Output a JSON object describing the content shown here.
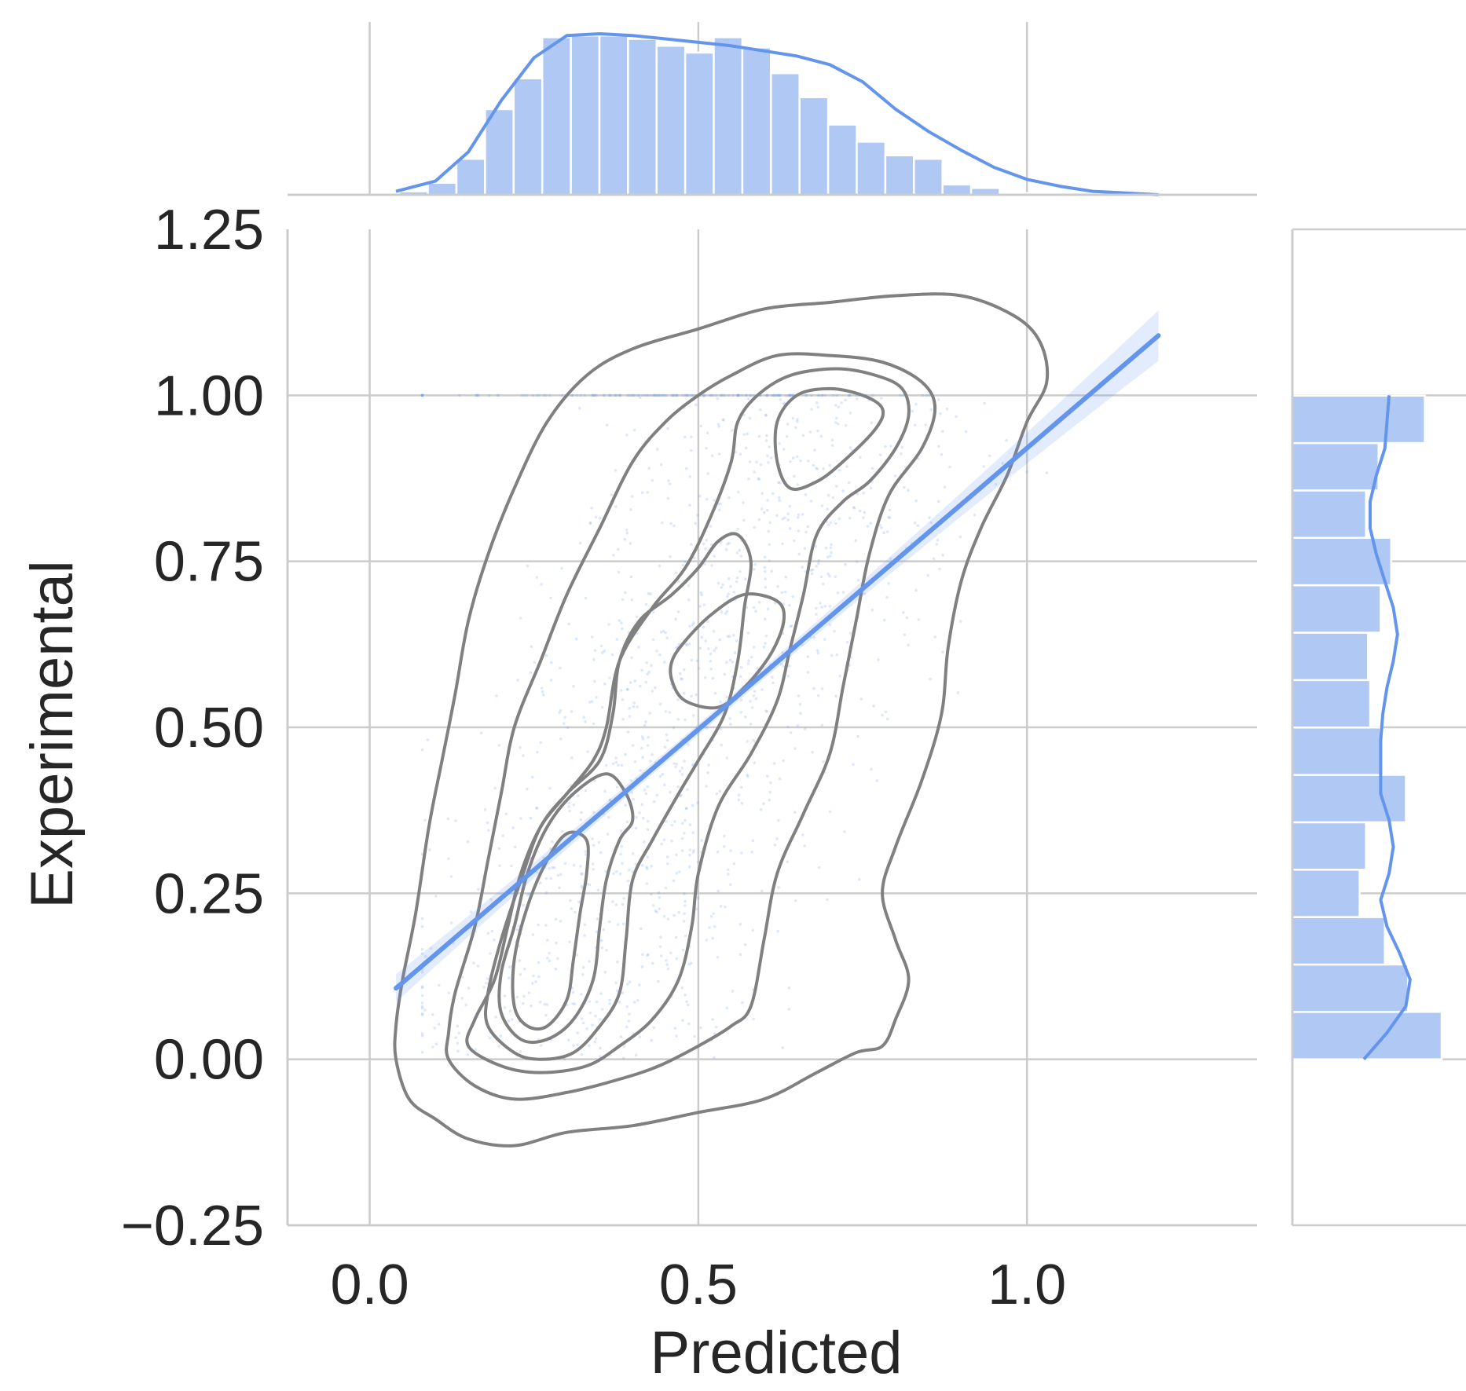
{
  "chart_data": {
    "type": "scatter",
    "xlabel": "Predicted",
    "ylabel": "Experimental",
    "xlim": [
      -0.125,
      1.35
    ],
    "ylim": [
      -0.25,
      1.25
    ],
    "xticks": [
      {
        "value": 0.0,
        "label": "0.0"
      },
      {
        "value": 0.5,
        "label": "0.5"
      },
      {
        "value": 1.0,
        "label": "1.0"
      }
    ],
    "yticks": [
      {
        "value": -0.25,
        "label": "−0.25"
      },
      {
        "value": 0.0,
        "label": "0.00"
      },
      {
        "value": 0.25,
        "label": "0.25"
      },
      {
        "value": 0.5,
        "label": "0.50"
      },
      {
        "value": 0.75,
        "label": "0.75"
      },
      {
        "value": 1.0,
        "label": "1.00"
      },
      {
        "value": 1.25,
        "label": "1.25"
      }
    ],
    "grid": true,
    "colors": {
      "series": "#6495ED",
      "hist_fill": "#B0C8F4",
      "contour": "#808080",
      "grid": "#CCCCCC",
      "text": "#262626"
    },
    "regression_line": {
      "x": [
        0.04,
        1.2
      ],
      "y": [
        0.107,
        1.09
      ]
    },
    "kde_contours": [
      [
        [
          0.04,
          0.0
        ],
        [
          0.06,
          -0.06
        ],
        [
          0.1,
          -0.09
        ],
        [
          0.15,
          -0.12
        ],
        [
          0.22,
          -0.13
        ],
        [
          0.3,
          -0.11
        ],
        [
          0.4,
          -0.1
        ],
        [
          0.5,
          -0.08
        ],
        [
          0.6,
          -0.06
        ],
        [
          0.68,
          -0.02
        ],
        [
          0.74,
          0.01
        ],
        [
          0.78,
          0.02
        ],
        [
          0.8,
          0.06
        ],
        [
          0.82,
          0.12
        ],
        [
          0.8,
          0.18
        ],
        [
          0.78,
          0.25
        ],
        [
          0.8,
          0.32
        ],
        [
          0.84,
          0.42
        ],
        [
          0.87,
          0.52
        ],
        [
          0.88,
          0.62
        ],
        [
          0.9,
          0.72
        ],
        [
          0.93,
          0.8
        ],
        [
          0.97,
          0.88
        ],
        [
          1.0,
          0.96
        ],
        [
          1.03,
          1.02
        ],
        [
          1.02,
          1.08
        ],
        [
          0.98,
          1.12
        ],
        [
          0.9,
          1.15
        ],
        [
          0.8,
          1.15
        ],
        [
          0.7,
          1.14
        ],
        [
          0.6,
          1.13
        ],
        [
          0.5,
          1.1
        ],
        [
          0.4,
          1.07
        ],
        [
          0.33,
          1.03
        ],
        [
          0.27,
          0.96
        ],
        [
          0.22,
          0.86
        ],
        [
          0.18,
          0.76
        ],
        [
          0.15,
          0.66
        ],
        [
          0.13,
          0.55
        ],
        [
          0.11,
          0.45
        ],
        [
          0.09,
          0.35
        ],
        [
          0.07,
          0.22
        ],
        [
          0.05,
          0.12
        ],
        [
          0.04,
          0.05
        ],
        [
          0.04,
          0.0
        ]
      ],
      [
        [
          0.12,
          0.0
        ],
        [
          0.16,
          -0.04
        ],
        [
          0.22,
          -0.06
        ],
        [
          0.3,
          -0.05
        ],
        [
          0.38,
          -0.03
        ],
        [
          0.44,
          -0.01
        ],
        [
          0.5,
          0.02
        ],
        [
          0.55,
          0.05
        ],
        [
          0.58,
          0.08
        ],
        [
          0.6,
          0.18
        ],
        [
          0.62,
          0.28
        ],
        [
          0.66,
          0.37
        ],
        [
          0.7,
          0.46
        ],
        [
          0.72,
          0.56
        ],
        [
          0.74,
          0.66
        ],
        [
          0.76,
          0.76
        ],
        [
          0.79,
          0.85
        ],
        [
          0.84,
          0.92
        ],
        [
          0.86,
          0.98
        ],
        [
          0.84,
          1.02
        ],
        [
          0.78,
          1.05
        ],
        [
          0.7,
          1.06
        ],
        [
          0.62,
          1.06
        ],
        [
          0.55,
          1.03
        ],
        [
          0.5,
          1.0
        ],
        [
          0.45,
          0.96
        ],
        [
          0.4,
          0.9
        ],
        [
          0.35,
          0.8
        ],
        [
          0.3,
          0.7
        ],
        [
          0.26,
          0.6
        ],
        [
          0.22,
          0.5
        ],
        [
          0.2,
          0.4
        ],
        [
          0.18,
          0.3
        ],
        [
          0.16,
          0.2
        ],
        [
          0.13,
          0.1
        ],
        [
          0.12,
          0.04
        ],
        [
          0.12,
          0.0
        ]
      ],
      [
        [
          0.15,
          0.02
        ],
        [
          0.2,
          -0.01
        ],
        [
          0.26,
          -0.02
        ],
        [
          0.33,
          -0.01
        ],
        [
          0.38,
          0.02
        ],
        [
          0.43,
          0.06
        ],
        [
          0.47,
          0.12
        ],
        [
          0.49,
          0.2
        ],
        [
          0.5,
          0.28
        ],
        [
          0.53,
          0.38
        ],
        [
          0.58,
          0.46
        ],
        [
          0.62,
          0.54
        ],
        [
          0.64,
          0.62
        ],
        [
          0.66,
          0.7
        ],
        [
          0.68,
          0.79
        ],
        [
          0.72,
          0.84
        ],
        [
          0.76,
          0.87
        ],
        [
          0.8,
          0.92
        ],
        [
          0.82,
          0.97
        ],
        [
          0.81,
          1.01
        ],
        [
          0.77,
          1.03
        ],
        [
          0.71,
          1.04
        ],
        [
          0.64,
          1.03
        ],
        [
          0.59,
          1.0
        ],
        [
          0.56,
          0.96
        ],
        [
          0.55,
          0.9
        ],
        [
          0.52,
          0.82
        ],
        [
          0.48,
          0.74
        ],
        [
          0.43,
          0.68
        ],
        [
          0.38,
          0.6
        ],
        [
          0.36,
          0.5
        ],
        [
          0.34,
          0.45
        ],
        [
          0.3,
          0.4
        ],
        [
          0.26,
          0.35
        ],
        [
          0.23,
          0.28
        ],
        [
          0.21,
          0.2
        ],
        [
          0.19,
          0.12
        ],
        [
          0.16,
          0.06
        ],
        [
          0.15,
          0.02
        ]
      ],
      [
        [
          0.18,
          0.05
        ],
        [
          0.22,
          0.01
        ],
        [
          0.26,
          0.0
        ],
        [
          0.31,
          0.01
        ],
        [
          0.35,
          0.05
        ],
        [
          0.38,
          0.1
        ],
        [
          0.39,
          0.18
        ],
        [
          0.4,
          0.27
        ],
        [
          0.43,
          0.33
        ],
        [
          0.47,
          0.4
        ],
        [
          0.5,
          0.45
        ],
        [
          0.54,
          0.52
        ],
        [
          0.56,
          0.6
        ],
        [
          0.57,
          0.68
        ],
        [
          0.58,
          0.75
        ],
        [
          0.56,
          0.79
        ],
        [
          0.53,
          0.78
        ],
        [
          0.5,
          0.74
        ],
        [
          0.46,
          0.7
        ],
        [
          0.41,
          0.66
        ],
        [
          0.38,
          0.6
        ],
        [
          0.37,
          0.52
        ],
        [
          0.35,
          0.45
        ],
        [
          0.3,
          0.4
        ],
        [
          0.26,
          0.35
        ],
        [
          0.23,
          0.27
        ],
        [
          0.2,
          0.18
        ],
        [
          0.18,
          0.1
        ],
        [
          0.18,
          0.05
        ]
      ],
      [
        [
          0.2,
          0.07
        ],
        [
          0.23,
          0.03
        ],
        [
          0.27,
          0.03
        ],
        [
          0.31,
          0.06
        ],
        [
          0.34,
          0.12
        ],
        [
          0.35,
          0.2
        ],
        [
          0.36,
          0.27
        ],
        [
          0.38,
          0.33
        ],
        [
          0.4,
          0.36
        ],
        [
          0.39,
          0.4
        ],
        [
          0.36,
          0.43
        ],
        [
          0.31,
          0.4
        ],
        [
          0.27,
          0.35
        ],
        [
          0.24,
          0.28
        ],
        [
          0.22,
          0.2
        ],
        [
          0.2,
          0.13
        ],
        [
          0.2,
          0.07
        ]
      ],
      [
        [
          0.22,
          0.08
        ],
        [
          0.24,
          0.05
        ],
        [
          0.27,
          0.05
        ],
        [
          0.3,
          0.09
        ],
        [
          0.31,
          0.15
        ],
        [
          0.32,
          0.22
        ],
        [
          0.33,
          0.28
        ],
        [
          0.33,
          0.33
        ],
        [
          0.3,
          0.34
        ],
        [
          0.27,
          0.3
        ],
        [
          0.24,
          0.23
        ],
        [
          0.22,
          0.15
        ],
        [
          0.22,
          0.08
        ]
      ],
      [
        [
          0.46,
          0.57
        ],
        [
          0.48,
          0.54
        ],
        [
          0.53,
          0.53
        ],
        [
          0.57,
          0.56
        ],
        [
          0.61,
          0.61
        ],
        [
          0.63,
          0.66
        ],
        [
          0.62,
          0.69
        ],
        [
          0.57,
          0.7
        ],
        [
          0.52,
          0.67
        ],
        [
          0.48,
          0.63
        ],
        [
          0.46,
          0.6
        ],
        [
          0.46,
          0.57
        ]
      ],
      [
        [
          0.62,
          0.9
        ],
        [
          0.64,
          0.86
        ],
        [
          0.68,
          0.87
        ],
        [
          0.72,
          0.9
        ],
        [
          0.77,
          0.95
        ],
        [
          0.78,
          0.98
        ],
        [
          0.75,
          1.0
        ],
        [
          0.7,
          1.01
        ],
        [
          0.65,
          1.0
        ],
        [
          0.62,
          0.96
        ],
        [
          0.62,
          0.9
        ]
      ]
    ],
    "marginal_x_hist": {
      "bin_start": 0.045,
      "bin_width": 0.0435,
      "counts": [
        2,
        7,
        21,
        50,
        68,
        92,
        93,
        93,
        91,
        87,
        83,
        92,
        86,
        71,
        57,
        41,
        31,
        23,
        21,
        6,
        4,
        1
      ]
    },
    "marginal_x_kde": {
      "x": [
        0.04,
        0.1,
        0.15,
        0.2,
        0.25,
        0.3,
        0.35,
        0.4,
        0.45,
        0.5,
        0.55,
        0.6,
        0.65,
        0.7,
        0.75,
        0.8,
        0.85,
        0.9,
        0.95,
        1.0,
        1.05,
        1.1,
        1.15,
        1.2
      ],
      "density": [
        2,
        8,
        25,
        55,
        80,
        93,
        94,
        93,
        91,
        89,
        87,
        84,
        81,
        76,
        66,
        50,
        37,
        26,
        16,
        9,
        5,
        2,
        1,
        0
      ]
    },
    "marginal_y_hist": {
      "bin_start": 0.0,
      "bin_width": 0.0714,
      "counts": [
        71,
        55,
        44,
        32,
        35,
        54,
        42,
        37,
        36,
        42,
        47,
        35,
        41,
        63
      ]
    },
    "marginal_y_kde": {
      "y": [
        0.0,
        0.04,
        0.08,
        0.12,
        0.16,
        0.2,
        0.24,
        0.28,
        0.32,
        0.36,
        0.4,
        0.44,
        0.48,
        0.52,
        0.56,
        0.6,
        0.64,
        0.68,
        0.72,
        0.76,
        0.8,
        0.84,
        0.88,
        0.92,
        0.96,
        1.0
      ],
      "density": [
        34,
        45,
        54,
        56,
        51,
        45,
        42,
        46,
        48,
        46,
        42,
        42,
        42,
        43,
        45,
        48,
        50,
        48,
        44,
        40,
        37,
        37,
        40,
        44,
        45,
        46
      ]
    }
  }
}
